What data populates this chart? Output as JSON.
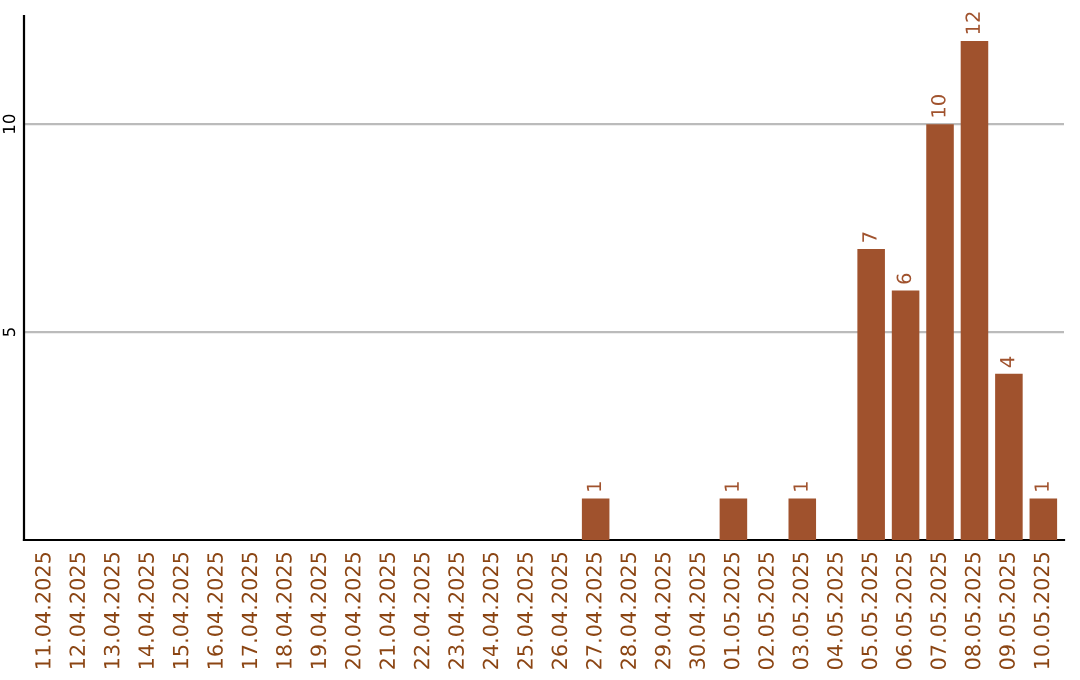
{
  "chart_data": {
    "type": "bar",
    "categories": [
      "11.04.2025",
      "12.04.2025",
      "13.04.2025",
      "14.04.2025",
      "15.04.2025",
      "16.04.2025",
      "17.04.2025",
      "18.04.2025",
      "19.04.2025",
      "20.04.2025",
      "21.04.2025",
      "22.04.2025",
      "23.04.2025",
      "24.04.2025",
      "25.04.2025",
      "26.04.2025",
      "27.04.2025",
      "28.04.2025",
      "29.04.2025",
      "30.04.2025",
      "01.05.2025",
      "02.05.2025",
      "03.05.2025",
      "04.05.2025",
      "05.05.2025",
      "06.05.2025",
      "07.05.2025",
      "08.05.2025",
      "09.05.2025",
      "10.05.2025"
    ],
    "values": [
      0,
      0,
      0,
      0,
      0,
      0,
      0,
      0,
      0,
      0,
      0,
      0,
      0,
      0,
      0,
      0,
      1,
      0,
      0,
      0,
      1,
      0,
      1,
      0,
      7,
      6,
      10,
      12,
      4,
      1
    ],
    "value_labels": [
      null,
      null,
      null,
      null,
      null,
      null,
      null,
      null,
      null,
      null,
      null,
      null,
      null,
      null,
      null,
      null,
      "1",
      null,
      null,
      null,
      "1",
      null,
      "1",
      null,
      "7",
      "6",
      "10",
      "12",
      "4",
      "1"
    ],
    "color": "#a0522d",
    "ylim": [
      0,
      12.6
    ],
    "yticks": [
      5,
      10
    ],
    "grid": "y"
  }
}
